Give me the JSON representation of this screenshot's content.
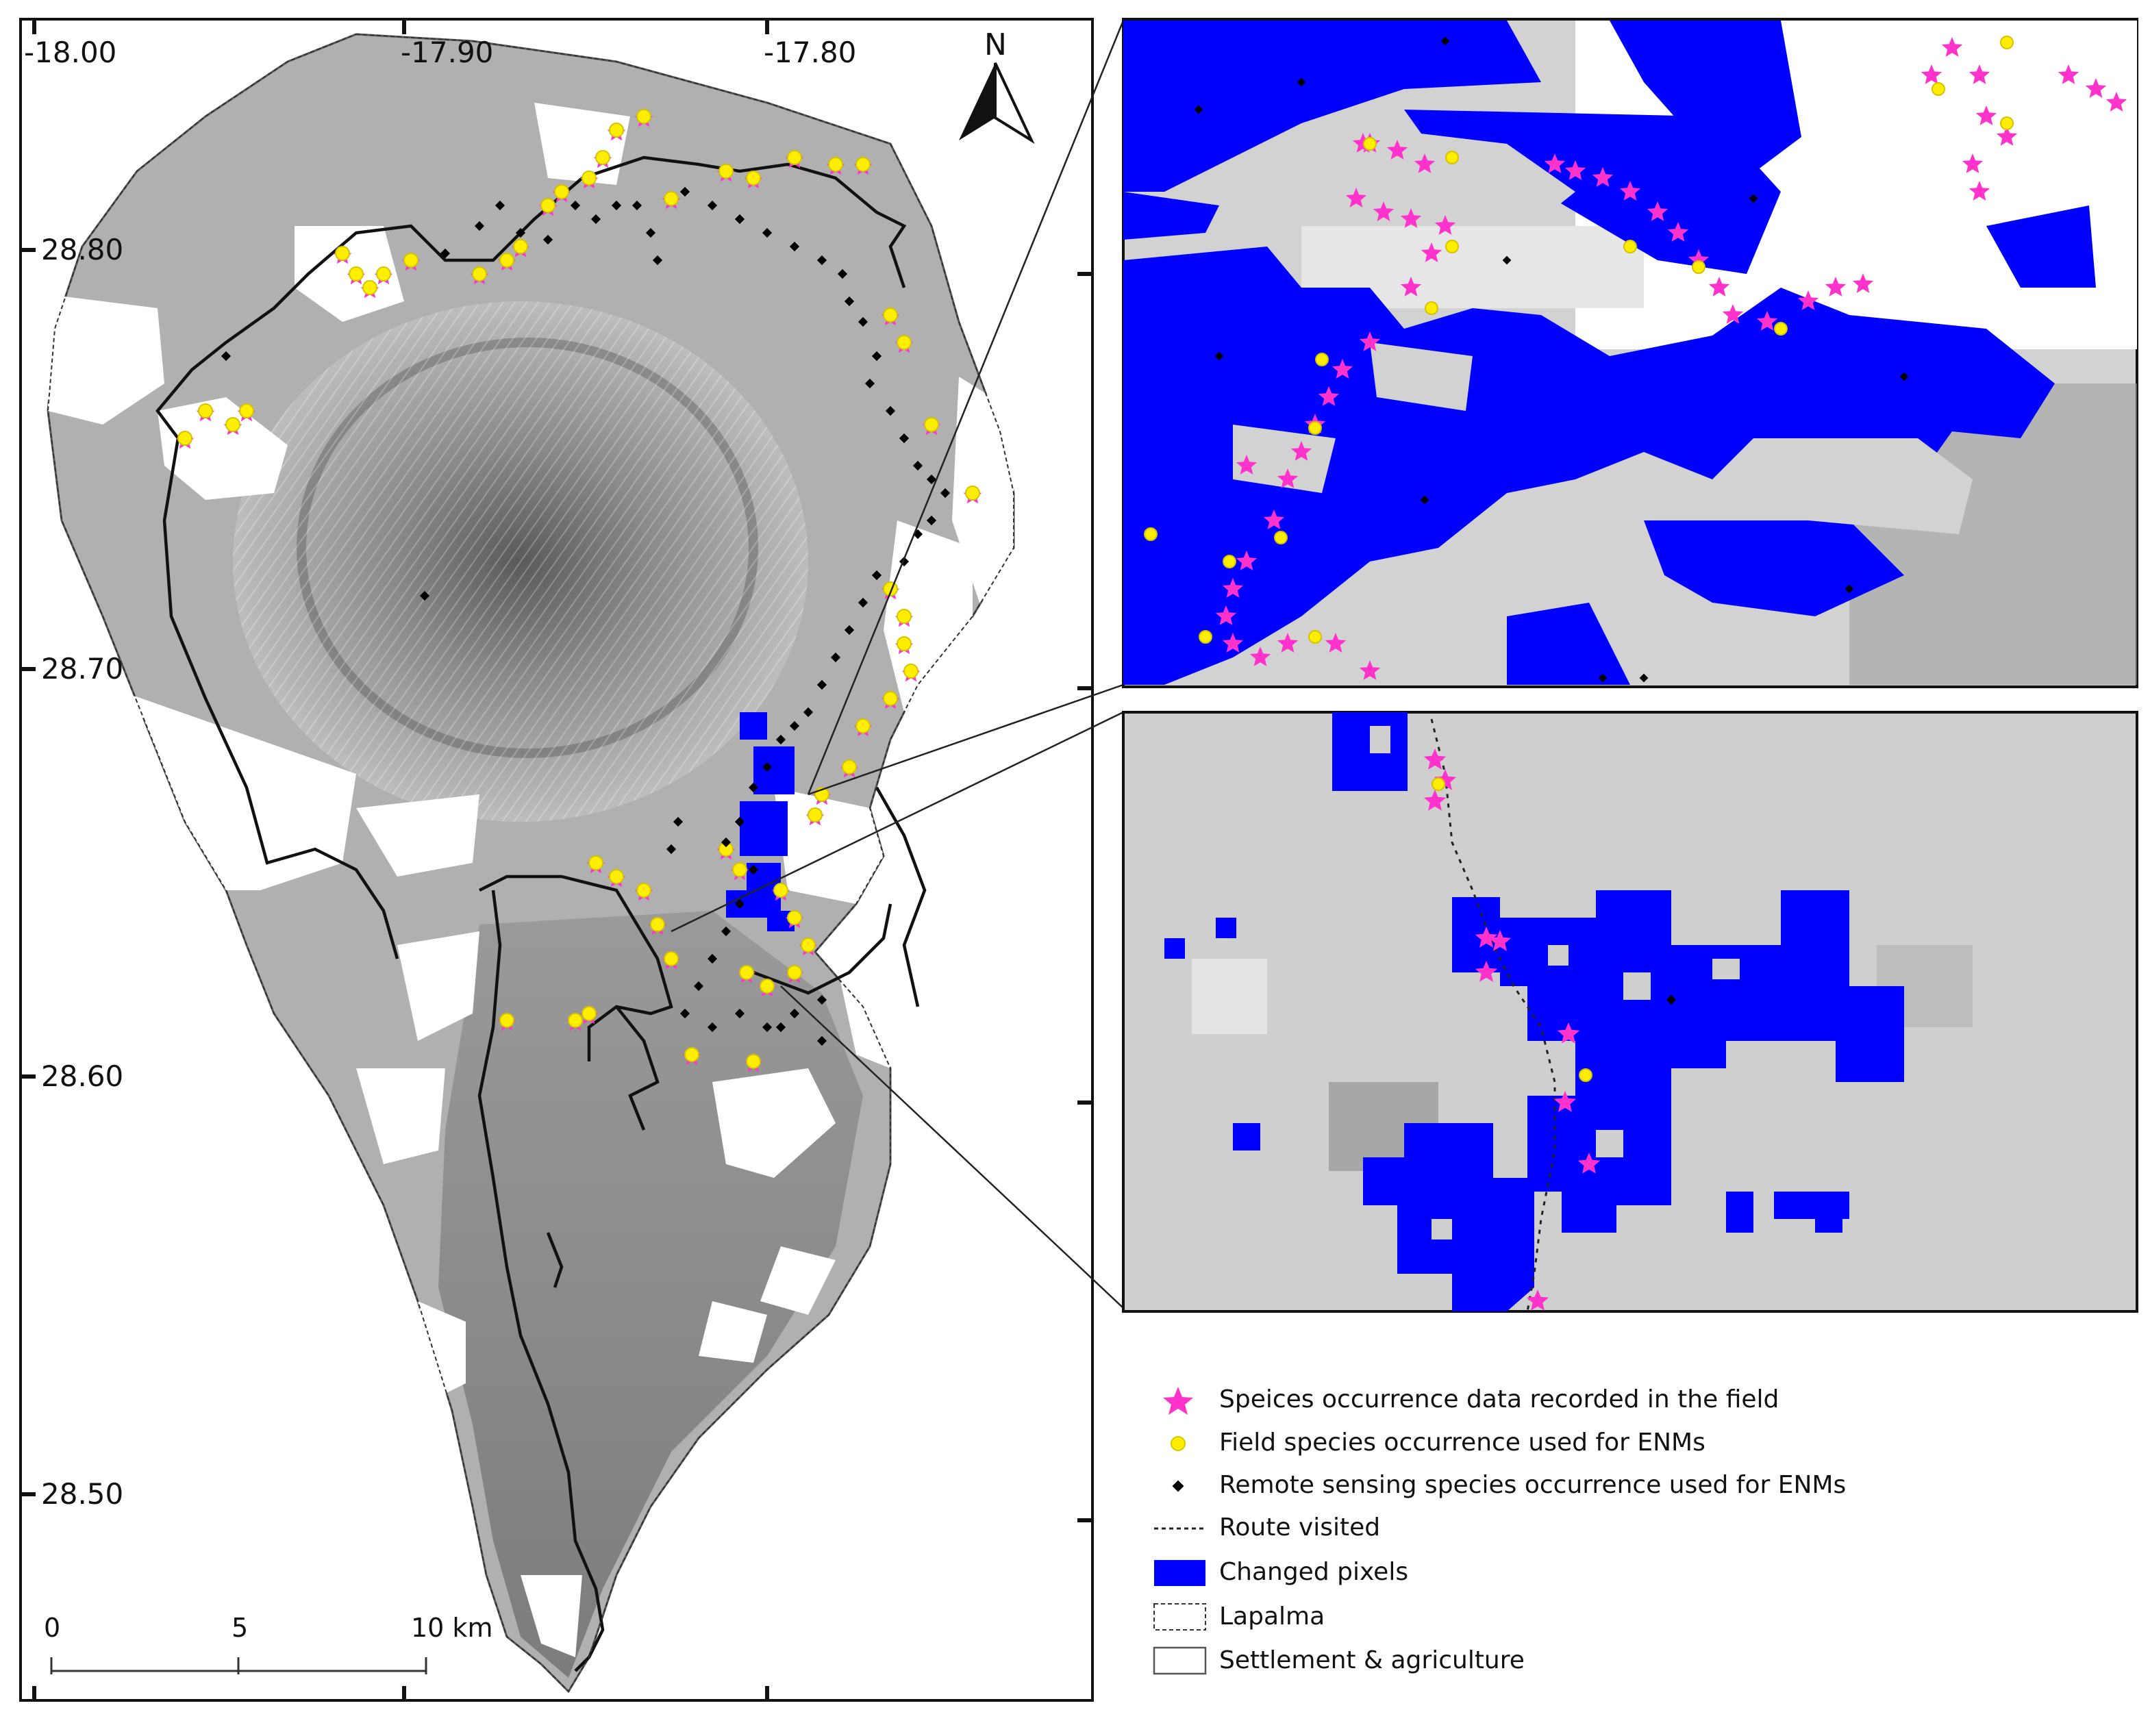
{
  "map": {
    "lon_ticks": [
      "-18.00",
      "-17.90",
      "-17.80"
    ],
    "lat_ticks": [
      "28.80",
      "28.70",
      "28.60",
      "28.50"
    ],
    "north_label": "N",
    "scale_bar": {
      "labels": [
        "0",
        "5",
        "10 km"
      ]
    }
  },
  "legend": {
    "items": [
      {
        "symbol": "pink-star",
        "label": "Speices occurrence data recorded in the field"
      },
      {
        "symbol": "yellow-circle",
        "label": "Field species occurrence used for ENMs"
      },
      {
        "symbol": "black-diamond",
        "label": "Remote sensing species occurrence used for ENMs"
      },
      {
        "symbol": "dashed-line",
        "label": "Route visited"
      },
      {
        "symbol": "blue-box",
        "label": "Changed pixels"
      },
      {
        "symbol": "dotted-box",
        "label": "Lapalma"
      },
      {
        "symbol": "white-box",
        "label": "Settlement & agriculture"
      }
    ]
  },
  "colors": {
    "changed_pixels": "#0000ff",
    "species_star": "#ff33cc",
    "field_point": "#ffee00",
    "remote_point": "#000000",
    "terrain_light": "#d6d6d6",
    "terrain_dark": "#6e6e6e"
  }
}
